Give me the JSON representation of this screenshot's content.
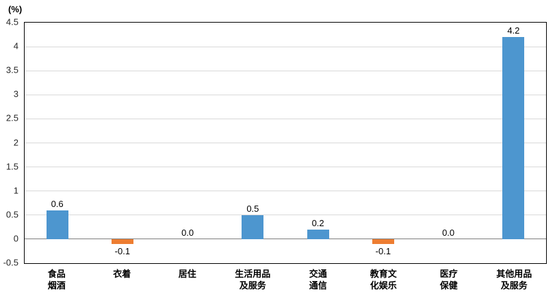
{
  "chart_data": {
    "type": "bar",
    "title": "",
    "unit_label": "(%)",
    "categories": [
      "食品\n烟酒",
      "衣着",
      "居住",
      "生活用品\n及服务",
      "交通\n通信",
      "教育文\n化娱乐",
      "医疗\n保健",
      "其他用品\n及服务"
    ],
    "values": [
      0.6,
      -0.1,
      0.0,
      0.5,
      0.2,
      -0.1,
      0.0,
      4.2
    ],
    "labels": [
      "0.6",
      "-0.1",
      "0.0",
      "0.5",
      "0.2",
      "-0.1",
      "0.0",
      "4.2"
    ],
    "ylim": [
      -0.5,
      4.5
    ],
    "ytick_step": 0.5,
    "yticks": [
      "4.5",
      "4",
      "3.5",
      "3",
      "2.5",
      "2",
      "1.5",
      "1",
      "0.5",
      "0",
      "-0.5"
    ],
    "colors": {
      "positive": "#4D96CF",
      "negative": "#ED7D31",
      "gridline": "#d9d9d9",
      "zero_line": "#7f7f7f",
      "plot_border": "#000000"
    },
    "grid": true,
    "legend": "none",
    "xlabel": "",
    "ylabel": "(%)"
  }
}
